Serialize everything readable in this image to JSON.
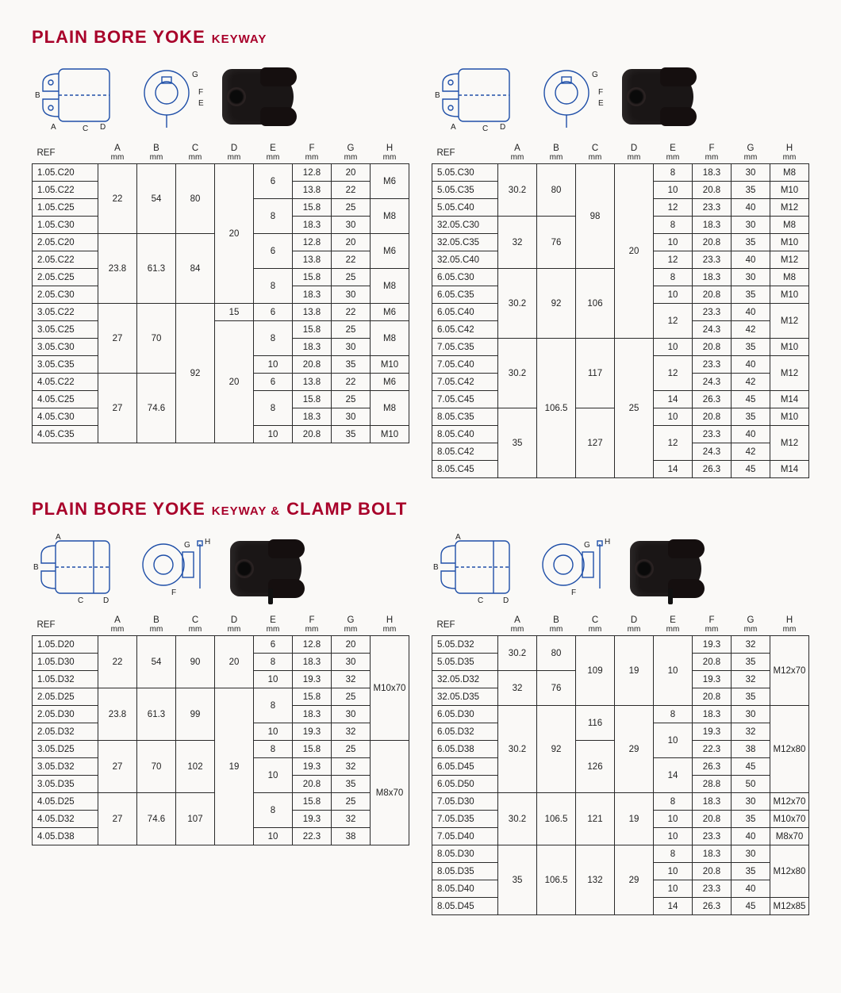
{
  "colors": {
    "accent": "#A8002A",
    "line": "#1f4fa8",
    "border": "#2a2a2a",
    "bg": "#faf9f7"
  },
  "title1": {
    "big": "PLAIN BORE YOKE",
    "small": "KEYWAY"
  },
  "title2": {
    "big1": "PLAIN BORE YOKE",
    "small": "KEYWAY &",
    "big2": "CLAMP BOLT"
  },
  "header_labels": {
    "ref": "REF",
    "A": "A",
    "B": "B",
    "C": "C",
    "D": "D",
    "E": "E",
    "F": "F",
    "G": "G",
    "H": "H",
    "unit": "mm"
  },
  "table1L": {
    "rows": [
      {
        "ref": "1.05.C20",
        "A": {
          "v": "22",
          "rs": 4
        },
        "B": {
          "v": "54",
          "rs": 4
        },
        "C": {
          "v": "80",
          "rs": 4
        },
        "D": {
          "v": "20",
          "rs": 8
        },
        "E": {
          "v": "6",
          "rs": 2
        },
        "F": "12.8",
        "G": "20",
        "H": {
          "v": "M6",
          "rs": 2
        }
      },
      {
        "ref": "1.05.C22",
        "F": "13.8",
        "G": "22"
      },
      {
        "ref": "1.05.C25",
        "E": {
          "v": "8",
          "rs": 2
        },
        "F": "15.8",
        "G": "25",
        "H": {
          "v": "M8",
          "rs": 2
        }
      },
      {
        "ref": "1.05.C30",
        "F": "18.3",
        "G": "30"
      },
      {
        "ref": "2.05.C20",
        "A": {
          "v": "23.8",
          "rs": 4
        },
        "B": {
          "v": "61.3",
          "rs": 4
        },
        "C": {
          "v": "84",
          "rs": 4
        },
        "E": {
          "v": "6",
          "rs": 2
        },
        "F": "12.8",
        "G": "20",
        "H": {
          "v": "M6",
          "rs": 2
        }
      },
      {
        "ref": "2.05.C22",
        "F": "13.8",
        "G": "22"
      },
      {
        "ref": "2.05.C25",
        "E": {
          "v": "8",
          "rs": 2
        },
        "F": "15.8",
        "G": "25",
        "H": {
          "v": "M8",
          "rs": 2
        }
      },
      {
        "ref": "2.05.C30",
        "F": "18.3",
        "G": "30"
      },
      {
        "ref": "3.05.C22",
        "A": {
          "v": "27",
          "rs": 4
        },
        "B": {
          "v": "70",
          "rs": 4
        },
        "C": {
          "v": "92",
          "rs": 8
        },
        "D": {
          "v": "15",
          "rs": 1
        },
        "E": {
          "v": "6",
          "rs": 1
        },
        "F": "13.8",
        "G": "22",
        "H": {
          "v": "M6",
          "rs": 1
        }
      },
      {
        "ref": "3.05.C25",
        "D": {
          "v": "20",
          "rs": 7
        },
        "E": {
          "v": "8",
          "rs": 2
        },
        "F": "15.8",
        "G": "25",
        "H": {
          "v": "M8",
          "rs": 2
        }
      },
      {
        "ref": "3.05.C30",
        "F": "18.3",
        "G": "30"
      },
      {
        "ref": "3.05.C35",
        "E": {
          "v": "10",
          "rs": 1
        },
        "F": "20.8",
        "G": "35",
        "H": {
          "v": "M10",
          "rs": 1
        }
      },
      {
        "ref": "4.05.C22",
        "A": {
          "v": "27",
          "rs": 4
        },
        "B": {
          "v": "74.6",
          "rs": 4
        },
        "E": {
          "v": "6",
          "rs": 1
        },
        "F": "13.8",
        "G": "22",
        "H": {
          "v": "M6",
          "rs": 1
        }
      },
      {
        "ref": "4.05.C25",
        "E": {
          "v": "8",
          "rs": 2
        },
        "F": "15.8",
        "G": "25",
        "H": {
          "v": "M8",
          "rs": 2
        }
      },
      {
        "ref": "4.05.C30",
        "F": "18.3",
        "G": "30"
      },
      {
        "ref": "4.05.C35",
        "E": {
          "v": "10",
          "rs": 1
        },
        "F": "20.8",
        "G": "35",
        "H": {
          "v": "M10",
          "rs": 1
        }
      }
    ]
  },
  "table1R": {
    "rows": [
      {
        "ref": "5.05.C30",
        "A": {
          "v": "30.2",
          "rs": 3
        },
        "B": {
          "v": "80",
          "rs": 3
        },
        "C": {
          "v": "98",
          "rs": 6
        },
        "D": {
          "v": "20",
          "rs": 10
        },
        "E": {
          "v": "8",
          "rs": 1
        },
        "F": "18.3",
        "G": "30",
        "H": {
          "v": "M8",
          "rs": 1
        }
      },
      {
        "ref": "5.05.C35",
        "E": {
          "v": "10",
          "rs": 1
        },
        "F": "20.8",
        "G": "35",
        "H": {
          "v": "M10",
          "rs": 1
        }
      },
      {
        "ref": "5.05.C40",
        "E": {
          "v": "12",
          "rs": 1
        },
        "F": "23.3",
        "G": "40",
        "H": {
          "v": "M12",
          "rs": 1
        }
      },
      {
        "ref": "32.05.C30",
        "A": {
          "v": "32",
          "rs": 3
        },
        "B": {
          "v": "76",
          "rs": 3
        },
        "E": {
          "v": "8",
          "rs": 1
        },
        "F": "18.3",
        "G": "30",
        "H": {
          "v": "M8",
          "rs": 1
        }
      },
      {
        "ref": "32.05.C35",
        "E": {
          "v": "10",
          "rs": 1
        },
        "F": "20.8",
        "G": "35",
        "H": {
          "v": "M10",
          "rs": 1
        }
      },
      {
        "ref": "32.05.C40",
        "E": {
          "v": "12",
          "rs": 1
        },
        "F": "23.3",
        "G": "40",
        "H": {
          "v": "M12",
          "rs": 1
        }
      },
      {
        "ref": "6.05.C30",
        "A": {
          "v": "30.2",
          "rs": 4
        },
        "B": {
          "v": "92",
          "rs": 4
        },
        "C": {
          "v": "106",
          "rs": 4
        },
        "E": {
          "v": "8",
          "rs": 1
        },
        "F": "18.3",
        "G": "30",
        "H": {
          "v": "M8",
          "rs": 1
        }
      },
      {
        "ref": "6.05.C35",
        "E": {
          "v": "10",
          "rs": 1
        },
        "F": "20.8",
        "G": "35",
        "H": {
          "v": "M10",
          "rs": 1
        }
      },
      {
        "ref": "6.05.C40",
        "E": {
          "v": "12",
          "rs": 2
        },
        "F": "23.3",
        "G": "40",
        "H": {
          "v": "M12",
          "rs": 2
        }
      },
      {
        "ref": "6.05.C42",
        "F": "24.3",
        "G": "42"
      },
      {
        "ref": "7.05.C35",
        "A": {
          "v": "30.2",
          "rs": 4
        },
        "B": {
          "v": "106.5",
          "rs": 8
        },
        "C": {
          "v": "117",
          "rs": 4
        },
        "D": {
          "v": "25",
          "rs": 8
        },
        "E": {
          "v": "10",
          "rs": 1
        },
        "F": "20.8",
        "G": "35",
        "H": {
          "v": "M10",
          "rs": 1
        }
      },
      {
        "ref": "7.05.C40",
        "E": {
          "v": "12",
          "rs": 2
        },
        "F": "23.3",
        "G": "40",
        "H": {
          "v": "M12",
          "rs": 2
        }
      },
      {
        "ref": "7.05.C42",
        "F": "24.3",
        "G": "42"
      },
      {
        "ref": "7.05.C45",
        "E": {
          "v": "14",
          "rs": 1
        },
        "F": "26.3",
        "G": "45",
        "H": {
          "v": "M14",
          "rs": 1
        }
      },
      {
        "ref": "8.05.C35",
        "A": {
          "v": "35",
          "rs": 4
        },
        "C": {
          "v": "127",
          "rs": 4
        },
        "E": {
          "v": "10",
          "rs": 1
        },
        "F": "20.8",
        "G": "35",
        "H": {
          "v": "M10",
          "rs": 1
        }
      },
      {
        "ref": "8.05.C40",
        "E": {
          "v": "12",
          "rs": 2
        },
        "F": "23.3",
        "G": "40",
        "H": {
          "v": "M12",
          "rs": 2
        }
      },
      {
        "ref": "8.05.C42",
        "F": "24.3",
        "G": "42"
      },
      {
        "ref": "8.05.C45",
        "E": {
          "v": "14",
          "rs": 1
        },
        "F": "26.3",
        "G": "45",
        "H": {
          "v": "M14",
          "rs": 1
        }
      }
    ]
  },
  "table2L": {
    "rows": [
      {
        "ref": "1.05.D20",
        "A": {
          "v": "22",
          "rs": 3
        },
        "B": {
          "v": "54",
          "rs": 3
        },
        "C": {
          "v": "90",
          "rs": 3
        },
        "D": {
          "v": "20",
          "rs": 3
        },
        "E": {
          "v": "6",
          "rs": 1
        },
        "F": "12.8",
        "G": "20",
        "H": {
          "v": "M10x70",
          "rs": 6
        }
      },
      {
        "ref": "1.05.D30",
        "E": {
          "v": "8",
          "rs": 1
        },
        "F": "18.3",
        "G": "30"
      },
      {
        "ref": "1.05.D32",
        "E": {
          "v": "10",
          "rs": 1
        },
        "F": "19.3",
        "G": "32"
      },
      {
        "ref": "2.05.D25",
        "A": {
          "v": "23.8",
          "rs": 3
        },
        "B": {
          "v": "61.3",
          "rs": 3
        },
        "C": {
          "v": "99",
          "rs": 3
        },
        "D": {
          "v": "19",
          "rs": 9
        },
        "E": {
          "v": "8",
          "rs": 2
        },
        "F": "15.8",
        "G": "25"
      },
      {
        "ref": "2.05.D30",
        "F": "18.3",
        "G": "30"
      },
      {
        "ref": "2.05.D32",
        "E": {
          "v": "10",
          "rs": 1
        },
        "F": "19.3",
        "G": "32"
      },
      {
        "ref": "3.05.D25",
        "A": {
          "v": "27",
          "rs": 3
        },
        "B": {
          "v": "70",
          "rs": 3
        },
        "C": {
          "v": "102",
          "rs": 3
        },
        "E": {
          "v": "8",
          "rs": 1
        },
        "F": "15.8",
        "G": "25",
        "H": {
          "v": "M8x70",
          "rs": 6
        }
      },
      {
        "ref": "3.05.D32",
        "E": {
          "v": "10",
          "rs": 2
        },
        "F": "19.3",
        "G": "32"
      },
      {
        "ref": "3.05.D35",
        "F": "20.8",
        "G": "35"
      },
      {
        "ref": "4.05.D25",
        "A": {
          "v": "27",
          "rs": 3
        },
        "B": {
          "v": "74.6",
          "rs": 3
        },
        "C": {
          "v": "107",
          "rs": 3
        },
        "E": {
          "v": "8",
          "rs": 2
        },
        "F": "15.8",
        "G": "25"
      },
      {
        "ref": "4.05.D32",
        "F": "19.3",
        "G": "32"
      },
      {
        "ref": "4.05.D38",
        "E": {
          "v": "10",
          "rs": 1
        },
        "F": "22.3",
        "G": "38"
      }
    ]
  },
  "table2R": {
    "rows": [
      {
        "ref": "5.05.D32",
        "A": {
          "v": "30.2",
          "rs": 2
        },
        "B": {
          "v": "80",
          "rs": 2
        },
        "C": {
          "v": "109",
          "rs": 4
        },
        "D": {
          "v": "19",
          "rs": 4
        },
        "E": {
          "v": "10",
          "rs": 4
        },
        "F": "19.3",
        "G": "32",
        "H": {
          "v": "M12x70",
          "rs": 4
        }
      },
      {
        "ref": "5.05.D35",
        "F": "20.8",
        "G": "35"
      },
      {
        "ref": "32.05.D32",
        "A": {
          "v": "32",
          "rs": 2
        },
        "B": {
          "v": "76",
          "rs": 2
        },
        "F": "19.3",
        "G": "32"
      },
      {
        "ref": "32.05.D35",
        "F": "20.8",
        "G": "35"
      },
      {
        "ref": "6.05.D30",
        "A": {
          "v": "30.2",
          "rs": 5
        },
        "B": {
          "v": "92",
          "rs": 5
        },
        "C": {
          "v": "116",
          "rs": 2
        },
        "D": {
          "v": "29",
          "rs": 5
        },
        "E": {
          "v": "8",
          "rs": 1
        },
        "F": "18.3",
        "G": "30",
        "H": {
          "v": "M12x80",
          "rs": 5
        }
      },
      {
        "ref": "6.05.D32",
        "E": {
          "v": "10",
          "rs": 2
        },
        "F": "19.3",
        "G": "32"
      },
      {
        "ref": "6.05.D38",
        "C": {
          "v": "126",
          "rs": 3
        },
        "F": "22.3",
        "G": "38"
      },
      {
        "ref": "6.05.D45",
        "E": {
          "v": "14",
          "rs": 2
        },
        "F": "26.3",
        "G": "45"
      },
      {
        "ref": "6.05.D50",
        "F": "28.8",
        "G": "50"
      },
      {
        "ref": "7.05.D30",
        "A": {
          "v": "30.2",
          "rs": 3
        },
        "B": {
          "v": "106.5",
          "rs": 3
        },
        "C": {
          "v": "121",
          "rs": 3
        },
        "D": {
          "v": "19",
          "rs": 3
        },
        "E": {
          "v": "8",
          "rs": 1
        },
        "F": "18.3",
        "G": "30",
        "H": {
          "v": "M12x70",
          "rs": 1
        }
      },
      {
        "ref": "7.05.D35",
        "E": {
          "v": "10",
          "rs": 1
        },
        "F": "20.8",
        "G": "35",
        "H": {
          "v": "M10x70",
          "rs": 1
        }
      },
      {
        "ref": "7.05.D40",
        "E": {
          "v": "10",
          "rs": 1
        },
        "F": "23.3",
        "G": "40",
        "H": {
          "v": "M8x70",
          "rs": 1
        }
      },
      {
        "ref": "8.05.D30",
        "A": {
          "v": "35",
          "rs": 4
        },
        "B": {
          "v": "106.5",
          "rs": 4
        },
        "C": {
          "v": "132",
          "rs": 4
        },
        "D": {
          "v": "29",
          "rs": 4
        },
        "E": {
          "v": "8",
          "rs": 1
        },
        "F": "18.3",
        "G": "30",
        "H": {
          "v": "M12x80",
          "rs": 3
        }
      },
      {
        "ref": "8.05.D35",
        "E": {
          "v": "10",
          "rs": 1
        },
        "F": "20.8",
        "G": "35"
      },
      {
        "ref": "8.05.D40",
        "E": {
          "v": "10",
          "rs": 1
        },
        "F": "23.3",
        "G": "40"
      },
      {
        "ref": "8.05.D45",
        "E": {
          "v": "14",
          "rs": 1
        },
        "F": "26.3",
        "G": "45",
        "H": {
          "v": "M12x85",
          "rs": 1
        }
      }
    ]
  }
}
